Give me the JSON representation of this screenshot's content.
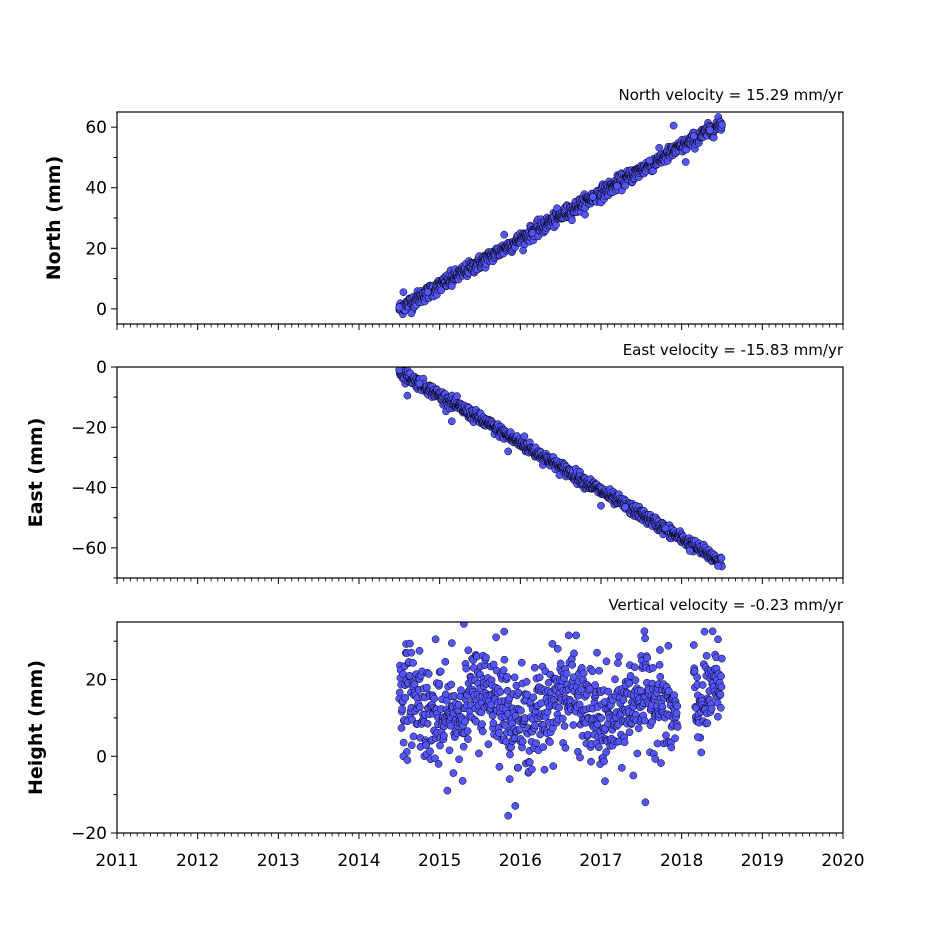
{
  "chart_data": [
    {
      "type": "scatter",
      "id": "north",
      "title": "North velocity = 15.29 mm/yr",
      "xlabel": "",
      "ylabel": "North (mm)",
      "xlim": [
        2011,
        2020
      ],
      "ylim": [
        -5,
        65
      ],
      "yticks": [
        0,
        20,
        40,
        60
      ],
      "xticks": [],
      "trend": {
        "slope": 15.29,
        "x0": 2014.5,
        "y0": 0,
        "noise": 1.2
      },
      "x_start": 2014.5,
      "x_end": 2018.5,
      "series": [
        {
          "points": [
            [
              2014.5,
              0.5
            ],
            [
              2014.55,
              5.5
            ],
            [
              2014.65,
              -1.5
            ],
            [
              2014.85,
              5.5
            ],
            [
              2015.15,
              7.5
            ],
            [
              2015.8,
              24.5
            ],
            [
              2016.15,
              25.0
            ],
            [
              2016.9,
              37.0
            ],
            [
              2017.2,
              40.5
            ],
            [
              2017.6,
              49.0
            ],
            [
              2017.9,
              60.5
            ],
            [
              2018.05,
              48.5
            ],
            [
              2018.15,
              57.0
            ],
            [
              2018.35,
              59.0
            ],
            [
              2018.5,
              60.8
            ]
          ]
        }
      ]
    },
    {
      "type": "scatter",
      "id": "east",
      "title": "East velocity = -15.83 mm/yr",
      "xlabel": "",
      "ylabel": "East (mm)",
      "xlim": [
        2011,
        2020
      ],
      "ylim": [
        -70,
        0
      ],
      "yticks": [
        0,
        -20,
        -40,
        -60
      ],
      "xticks": [],
      "trend": {
        "slope": -15.83,
        "x0": 2014.5,
        "y0": -1.5,
        "noise": 1.0
      },
      "x_start": 2014.5,
      "x_end": 2018.5,
      "series": [
        {
          "points": [
            [
              2014.5,
              -1.0
            ],
            [
              2014.6,
              -9.5
            ],
            [
              2014.75,
              -5.5
            ],
            [
              2015.15,
              -18.0
            ],
            [
              2015.85,
              -28.0
            ],
            [
              2016.05,
              -23.0
            ],
            [
              2017.0,
              -46.0
            ],
            [
              2017.3,
              -46.5
            ],
            [
              2017.8,
              -53.5
            ],
            [
              2018.1,
              -61.0
            ],
            [
              2018.45,
              -66.0
            ]
          ]
        }
      ]
    },
    {
      "type": "scatter",
      "id": "height",
      "title": "Vertical velocity = -0.23 mm/yr",
      "xlabel": "",
      "ylabel": "Height (mm)",
      "xlim": [
        2011,
        2020
      ],
      "ylim": [
        -20,
        35
      ],
      "yticks": [
        -20,
        0,
        20
      ],
      "xticks": [
        2011,
        2012,
        2013,
        2014,
        2015,
        2016,
        2017,
        2018,
        2019,
        2020
      ],
      "trend": {
        "slope": -0.23,
        "x0": 2014.5,
        "y0": 13,
        "noise": 6
      },
      "x_start": 2014.5,
      "x_end": 2018.5,
      "gap": [
        2017.95,
        2018.15
      ],
      "series": [
        {
          "points": [
            [
              2014.55,
              0.0
            ],
            [
              2014.6,
              -1.0
            ],
            [
              2014.65,
              27.0
            ],
            [
              2014.75,
              27.5
            ],
            [
              2014.95,
              30.5
            ],
            [
              2015.15,
              29.5
            ],
            [
              2015.3,
              34.5
            ],
            [
              2015.7,
              31.0
            ],
            [
              2015.85,
              -15.5
            ],
            [
              2015.8,
              32.5
            ],
            [
              2016.3,
              -3.5
            ],
            [
              2016.6,
              31.5
            ],
            [
              2016.95,
              27.0
            ],
            [
              2017.05,
              -6.5
            ],
            [
              2017.4,
              -5.0
            ],
            [
              2017.55,
              -12.0
            ],
            [
              2018.15,
              29.0
            ],
            [
              2018.2,
              5.0
            ],
            [
              2018.45,
              30.5
            ]
          ]
        }
      ]
    }
  ],
  "colors": {
    "marker_fill": "#5555ff",
    "marker_edge": "#000000",
    "axis": "#000000"
  }
}
